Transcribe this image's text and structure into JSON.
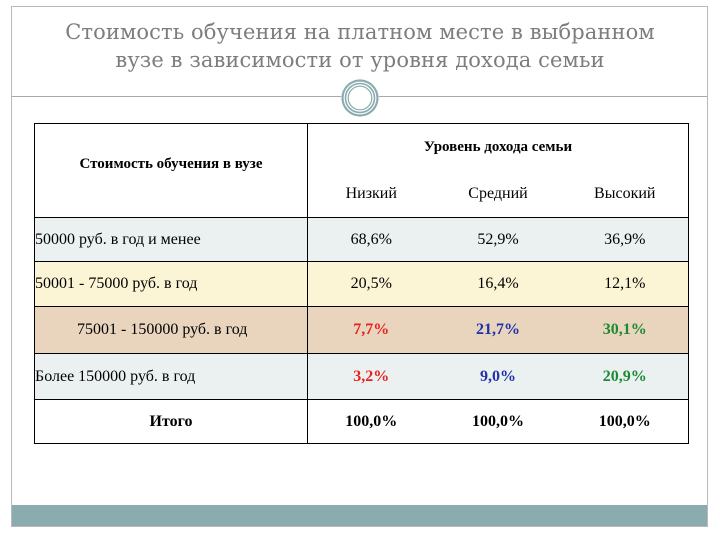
{
  "slide": {
    "title_line1": "Стоимость обучения на  платном месте в выбранном",
    "title_line2": "вузе в зависимости от уровня дохода семьи"
  },
  "colors": {
    "title": "#7d7d7d",
    "accent_bar": "#8aacaf",
    "row_blue": "#ebf1f1",
    "row_yellow": "#fcf5d5",
    "row_tan": "#e9d4bd",
    "red": "#e8221f",
    "blue": "#1f32a8",
    "green": "#1b8a32"
  },
  "table": {
    "left_header": "Стоимость обучения в вузе",
    "group_header": "Уровень дохода семьи",
    "columns": [
      "Низкий",
      "Средний",
      "Высокий"
    ],
    "rows": [
      {
        "label": "50000 руб. в год и менее",
        "values": [
          "68,6%",
          "52,9%",
          "36,9%"
        ],
        "bg": "#ebf1f1"
      },
      {
        "label": "50001 - 75000 руб. в год",
        "values": [
          "20,5%",
          "16,4%",
          "12,1%"
        ],
        "bg": "#fcf5d5"
      },
      {
        "label": "75001 - 150000 руб. в год",
        "values": [
          "7,7%",
          "21,7%",
          "30,1%"
        ],
        "bg": "#e9d4bd",
        "value_colors": [
          "#e8221f",
          "#1f32a8",
          "#1b8a32"
        ]
      },
      {
        "label": "Более 150000 руб. в год",
        "values": [
          "3,2%",
          "9,0%",
          "20,9%"
        ],
        "bg": "#ebf1f1",
        "value_colors": [
          "#e8221f",
          "#1f32a8",
          "#1b8a32"
        ]
      }
    ],
    "total": {
      "label": "Итого",
      "values": [
        "100,0%",
        "100,0%",
        "100,0%"
      ]
    }
  }
}
